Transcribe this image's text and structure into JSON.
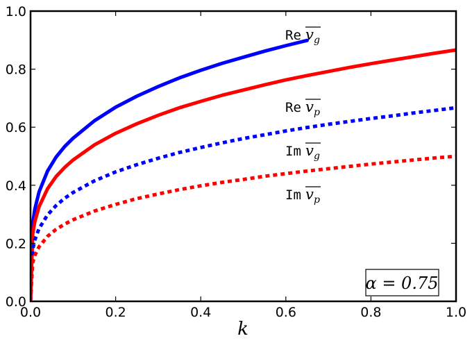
{
  "chart_data": {
    "type": "line",
    "title": "",
    "xlabel": "k",
    "ylabel": "",
    "xlim": [
      0.0,
      1.0
    ],
    "ylim": [
      0.0,
      1.0
    ],
    "grid": false,
    "legend": "none",
    "x_ticks": [
      "0.0",
      "0.2",
      "0.4",
      "0.6",
      "0.8",
      "1.0"
    ],
    "y_ticks": [
      "0.0",
      "0.2",
      "0.4",
      "0.6",
      "0.8",
      "1.0"
    ],
    "parameter_box": {
      "text": "α = 0.75",
      "placement": "bottom-right"
    },
    "series": [
      {
        "label_prefix": "Re",
        "label_symbol": "v",
        "label_sub": "g",
        "color": "#0000ff",
        "style": "solid",
        "x": [
          0.0,
          0.005,
          0.01,
          0.02,
          0.04,
          0.06,
          0.08,
          0.1,
          0.15,
          0.2,
          0.25,
          0.3,
          0.35,
          0.4,
          0.45,
          0.5,
          0.55,
          0.6,
          0.65
        ],
        "y": [
          0.0,
          0.267,
          0.317,
          0.377,
          0.449,
          0.497,
          0.533,
          0.562,
          0.622,
          0.669,
          0.707,
          0.74,
          0.77,
          0.796,
          0.82,
          0.841,
          0.862,
          0.881,
          0.899
        ]
      },
      {
        "label_prefix": "Re",
        "label_symbol": "v",
        "label_sub": "p",
        "color": "#ff0000",
        "style": "solid",
        "x": [
          0.0,
          0.005,
          0.01,
          0.02,
          0.04,
          0.06,
          0.08,
          0.1,
          0.15,
          0.2,
          0.25,
          0.3,
          0.35,
          0.4,
          0.45,
          0.5,
          0.55,
          0.6,
          0.65,
          0.7,
          0.75,
          0.8,
          0.85,
          0.9,
          0.95,
          1.0
        ],
        "y": [
          0.0,
          0.231,
          0.274,
          0.326,
          0.388,
          0.43,
          0.461,
          0.487,
          0.539,
          0.579,
          0.612,
          0.641,
          0.667,
          0.689,
          0.71,
          0.728,
          0.746,
          0.763,
          0.778,
          0.792,
          0.806,
          0.819,
          0.831,
          0.843,
          0.855,
          0.866
        ]
      },
      {
        "label_prefix": "Im",
        "label_symbol": "v",
        "label_sub": "g",
        "color": "#0000ff",
        "style": "dotted",
        "x": [
          0.0,
          0.005,
          0.01,
          0.02,
          0.04,
          0.06,
          0.08,
          0.1,
          0.15,
          0.2,
          0.25,
          0.3,
          0.35,
          0.4,
          0.45,
          0.5,
          0.55,
          0.6,
          0.65,
          0.7,
          0.75,
          0.8,
          0.85,
          0.9,
          0.95,
          1.0
        ],
        "y": [
          0.0,
          0.178,
          0.211,
          0.251,
          0.298,
          0.33,
          0.355,
          0.375,
          0.415,
          0.446,
          0.471,
          0.493,
          0.513,
          0.53,
          0.546,
          0.561,
          0.574,
          0.587,
          0.599,
          0.61,
          0.62,
          0.63,
          0.639,
          0.649,
          0.658,
          0.667
        ]
      },
      {
        "label_prefix": "Im",
        "label_symbol": "v",
        "label_sub": "p",
        "color": "#ff0000",
        "style": "dotted",
        "x": [
          0.0,
          0.005,
          0.01,
          0.02,
          0.04,
          0.06,
          0.08,
          0.1,
          0.15,
          0.2,
          0.25,
          0.3,
          0.35,
          0.4,
          0.45,
          0.5,
          0.55,
          0.6,
          0.65,
          0.7,
          0.75,
          0.8,
          0.85,
          0.9,
          0.95,
          1.0
        ],
        "y": [
          0.0,
          0.133,
          0.158,
          0.188,
          0.224,
          0.248,
          0.266,
          0.281,
          0.311,
          0.334,
          0.354,
          0.37,
          0.385,
          0.398,
          0.41,
          0.42,
          0.431,
          0.44,
          0.449,
          0.457,
          0.465,
          0.473,
          0.48,
          0.487,
          0.494,
          0.5
        ]
      }
    ]
  }
}
